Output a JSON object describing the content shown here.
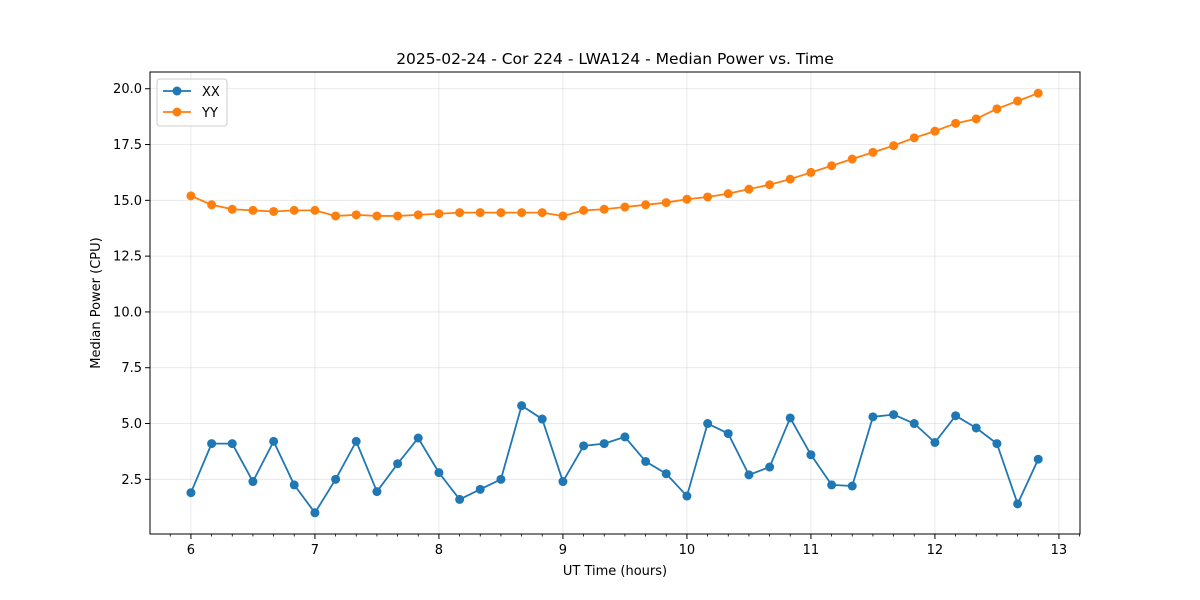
{
  "chart_data": {
    "type": "line",
    "title": "2025-02-24 - Cor 224 - LWA124 - Median Power vs. Time",
    "xlabel": "UT Time (hours)",
    "ylabel": "Median Power (CPU)",
    "xlim": [
      5.67,
      13.17
    ],
    "ylim": [
      0.05,
      20.75
    ],
    "grid": true,
    "legend_location": "upper-left",
    "x_ticks": [
      6,
      7,
      8,
      9,
      10,
      11,
      12,
      13
    ],
    "x_tick_labels": [
      "6",
      "7",
      "8",
      "9",
      "10",
      "11",
      "12",
      "13"
    ],
    "y_ticks": [
      2.5,
      5.0,
      7.5,
      10.0,
      12.5,
      15.0,
      17.5,
      20.0
    ],
    "y_tick_labels": [
      "2.5",
      "5.0",
      "7.5",
      "10.0",
      "12.5",
      "15.0",
      "17.5",
      "20.0"
    ],
    "x": [
      6.0,
      6.167,
      6.333,
      6.5,
      6.667,
      6.833,
      7.0,
      7.167,
      7.333,
      7.5,
      7.667,
      7.833,
      8.0,
      8.167,
      8.333,
      8.5,
      8.667,
      8.833,
      9.0,
      9.167,
      9.333,
      9.5,
      9.667,
      9.833,
      10.0,
      10.167,
      10.333,
      10.5,
      10.667,
      10.833,
      11.0,
      11.167,
      11.333,
      11.5,
      11.667,
      11.833,
      12.0,
      12.167,
      12.333,
      12.5,
      12.667,
      12.833
    ],
    "series": [
      {
        "name": "XX",
        "color": "#1f77b4",
        "values": [
          1.9,
          4.1,
          4.1,
          2.4,
          4.2,
          2.25,
          1.0,
          2.5,
          4.2,
          1.95,
          3.2,
          4.35,
          2.8,
          1.6,
          2.05,
          2.5,
          5.8,
          5.2,
          2.4,
          4.0,
          4.1,
          4.4,
          3.3,
          2.75,
          1.75,
          5.0,
          4.55,
          2.7,
          3.05,
          5.25,
          3.6,
          2.25,
          2.2,
          5.3,
          5.4,
          5.0,
          4.15,
          5.35,
          4.8,
          4.1,
          1.4,
          3.4
        ]
      },
      {
        "name": "YY",
        "color": "#ff7f0e",
        "values": [
          15.2,
          14.8,
          14.6,
          14.55,
          14.5,
          14.55,
          14.55,
          14.3,
          14.35,
          14.3,
          14.3,
          14.35,
          14.4,
          14.45,
          14.45,
          14.45,
          14.45,
          14.45,
          14.3,
          14.55,
          14.6,
          14.7,
          14.8,
          14.9,
          15.05,
          15.15,
          15.3,
          15.5,
          15.7,
          15.95,
          16.25,
          16.55,
          16.85,
          17.15,
          17.45,
          17.8,
          18.1,
          18.45,
          18.65,
          19.1,
          19.45,
          19.8
        ]
      }
    ]
  }
}
